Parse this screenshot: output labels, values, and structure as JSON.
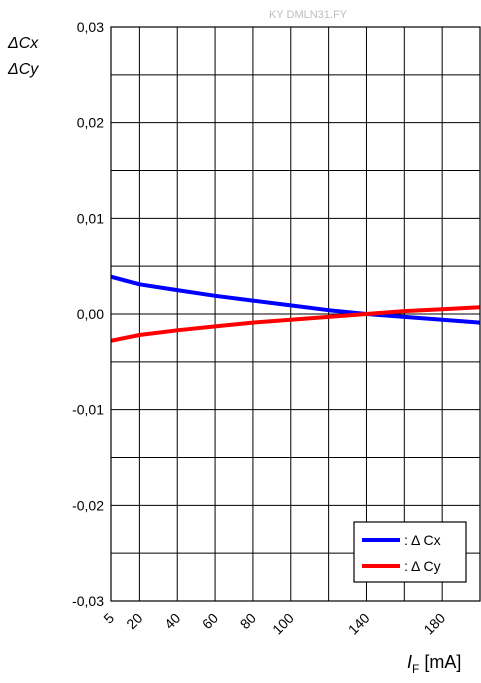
{
  "watermark": "KY DMLN31.FY",
  "chart_data": {
    "type": "line",
    "ylabel_lines": [
      "ΔCx",
      "ΔCy"
    ],
    "xlabel_main": "I",
    "xlabel_sub": "F",
    "xlabel_unit": " [mA]",
    "ylim": [
      -0.03,
      0.03
    ],
    "xlim": [
      5,
      200
    ],
    "y_ticks": [
      -0.03,
      -0.02,
      -0.01,
      0.0,
      0.01,
      0.02,
      0.03
    ],
    "y_tick_labels": [
      "-0,03",
      "-0,02",
      "-0,01",
      "0,00",
      "0,01",
      "0,02",
      "0,03"
    ],
    "x_ticks": [
      5,
      20,
      40,
      60,
      80,
      100,
      140,
      180
    ],
    "x_tick_labels": [
      "5",
      "20",
      "40",
      "60",
      "80",
      "100",
      "140",
      "180"
    ],
    "x_gridlines": [
      5,
      20,
      40,
      60,
      80,
      100,
      120,
      140,
      160,
      180,
      200
    ],
    "y_minor_gridlines": [
      -0.025,
      -0.015,
      -0.005,
      0.005,
      0.015,
      0.025
    ],
    "grid": true,
    "legend_position": "bottom-right",
    "series": [
      {
        "name": ": Δ Cx",
        "color": "#0000ff",
        "x": [
          5,
          20,
          40,
          60,
          80,
          100,
          120,
          140,
          160,
          180,
          200
        ],
        "y": [
          0.0039,
          0.0031,
          0.0025,
          0.0019,
          0.0014,
          0.0009,
          0.0004,
          0.0,
          -0.0003,
          -0.0006,
          -0.0009
        ]
      },
      {
        "name": ": Δ Cy",
        "color": "#ff0000",
        "x": [
          5,
          20,
          40,
          60,
          80,
          100,
          120,
          140,
          160,
          180,
          200
        ],
        "y": [
          -0.0028,
          -0.0022,
          -0.0017,
          -0.0013,
          -0.0009,
          -0.0006,
          -0.0003,
          0.0,
          0.0003,
          0.0005,
          0.0007
        ]
      }
    ]
  }
}
